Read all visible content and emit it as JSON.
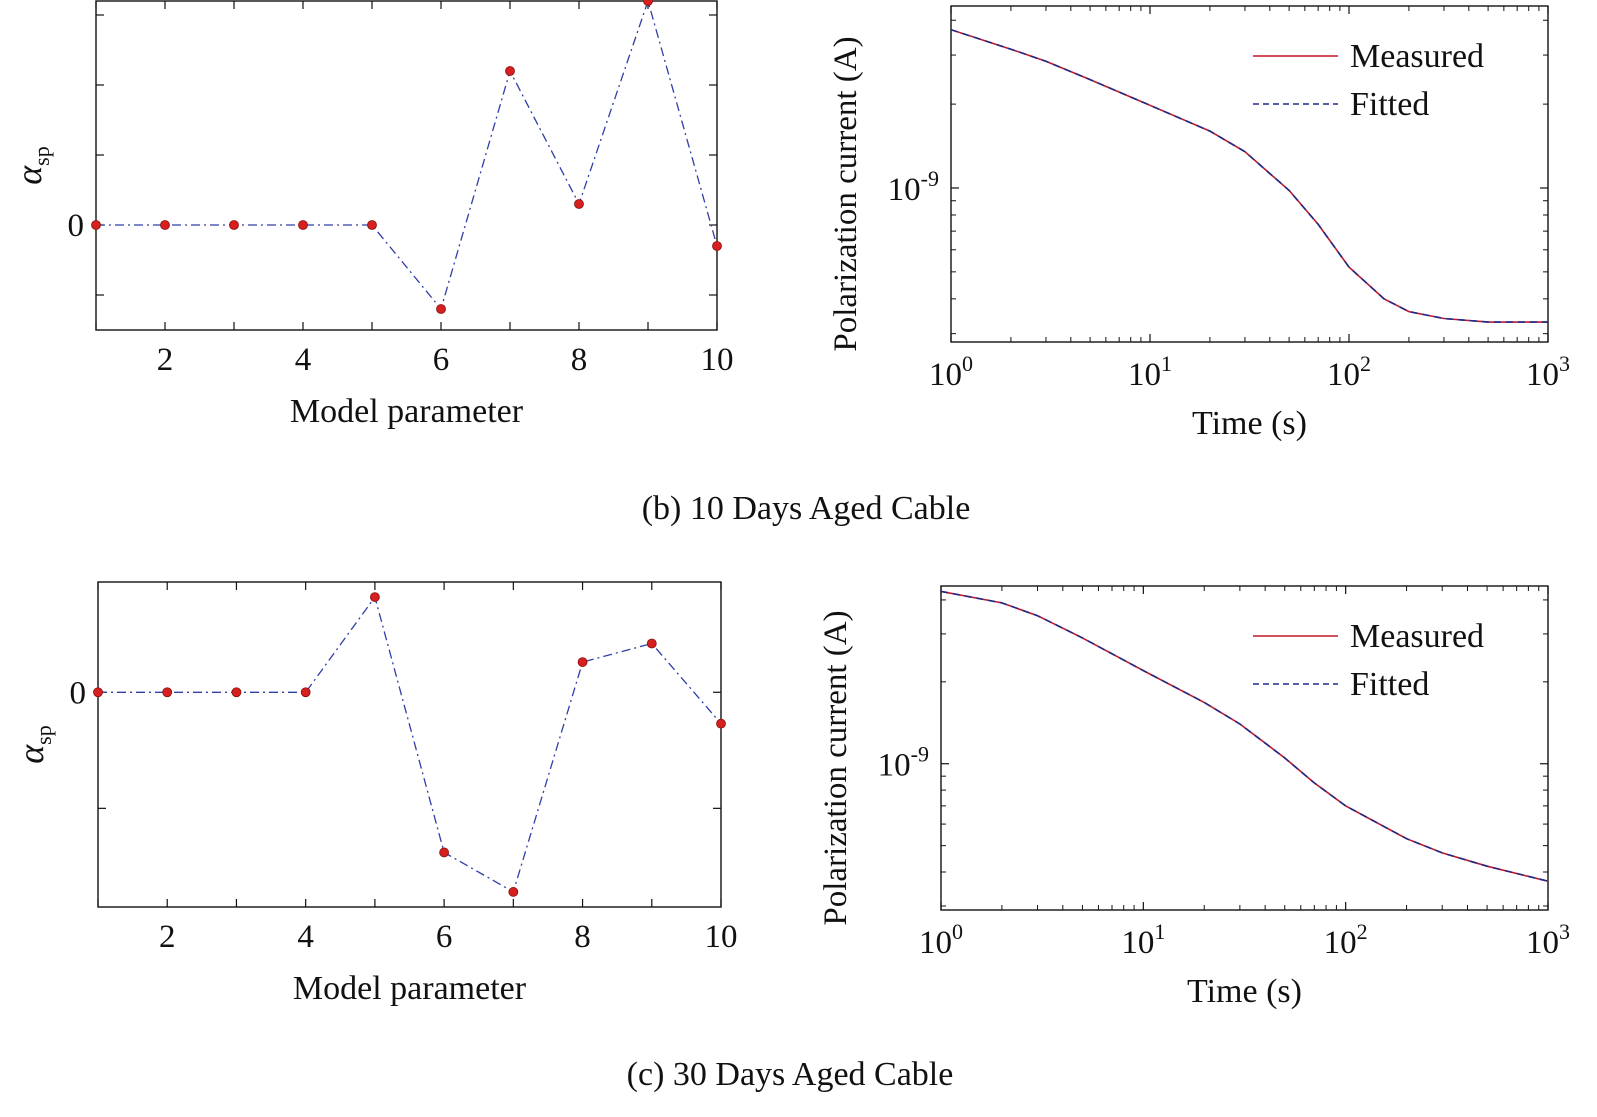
{
  "figure": {
    "captions": [
      "(b) 10 Days Aged Cable",
      "(c) 30 Days Aged Cable"
    ]
  },
  "colors": {
    "marker": "#d61f1f",
    "dashdot": "#2f3fa6",
    "measured": "#c0182a",
    "fitted": "#1e2a8a",
    "axis": "#111111"
  },
  "chart_data": [
    {
      "id": "b-alpha",
      "panel": "(b)",
      "type": "line",
      "xlabel": "Model parameter",
      "ylabel": "α",
      "ylabel_sub": "sp",
      "xlim": [
        1,
        10
      ],
      "ylim": [
        -1.5,
        3.2
      ],
      "xticks": [
        1,
        2,
        3,
        4,
        5,
        6,
        7,
        8,
        9,
        10
      ],
      "xtick_labels": [
        "",
        "2",
        "",
        "4",
        "",
        "6",
        "",
        "8",
        "",
        "10"
      ],
      "yticks": [
        -1,
        0,
        1,
        2,
        3
      ],
      "ytick_labels": [
        "",
        "0",
        "",
        "",
        ""
      ],
      "series": [
        {
          "name": "alpha_sp",
          "x": [
            1,
            2,
            3,
            4,
            5,
            6,
            7,
            8,
            9,
            10
          ],
          "y": [
            0,
            0,
            0,
            0,
            0,
            -1.2,
            2.2,
            0.3,
            3.2,
            -0.3
          ]
        }
      ]
    },
    {
      "id": "b-current",
      "panel": "(b)",
      "type": "line",
      "xscale": "log",
      "yscale": "log",
      "xlabel": "Time (s)",
      "ylabel": "Polarization current (A)",
      "xlim": [
        1,
        1000
      ],
      "ylim": [
        2.8e-10,
        4.5e-09
      ],
      "xticks": [
        1,
        10,
        100,
        1000
      ],
      "xtick_labels": [
        {
          "base": "10",
          "exp": "0"
        },
        {
          "base": "10",
          "exp": "1"
        },
        {
          "base": "10",
          "exp": "2"
        },
        {
          "base": "10",
          "exp": "3"
        }
      ],
      "yticks": [
        1e-09
      ],
      "ytick_labels": [
        {
          "base": "10",
          "exp": "-9"
        }
      ],
      "legend": {
        "position": "top-right",
        "entries": [
          "Measured",
          "Fitted"
        ]
      },
      "series": [
        {
          "name": "Measured",
          "style": "solid",
          "x": [
            1,
            2,
            3,
            5,
            10,
            20,
            30,
            50,
            70,
            100,
            150,
            200,
            300,
            500,
            1000
          ],
          "y": [
            3.7e-09,
            3.15e-09,
            2.85e-09,
            2.45e-09,
            1.98e-09,
            1.6e-09,
            1.35e-09,
            9.8e-10,
            7.4e-10,
            5.2e-10,
            4e-10,
            3.6e-10,
            3.4e-10,
            3.3e-10,
            3.3e-10
          ]
        },
        {
          "name": "Fitted",
          "style": "dashed",
          "x": [
            1,
            2,
            3,
            5,
            10,
            20,
            30,
            50,
            70,
            100,
            150,
            200,
            300,
            500,
            1000
          ],
          "y": [
            3.7e-09,
            3.15e-09,
            2.85e-09,
            2.45e-09,
            1.98e-09,
            1.6e-09,
            1.35e-09,
            9.8e-10,
            7.4e-10,
            5.2e-10,
            4e-10,
            3.6e-10,
            3.4e-10,
            3.3e-10,
            3.3e-10
          ]
        }
      ]
    },
    {
      "id": "c-alpha",
      "panel": "(c)",
      "type": "line",
      "xlabel": "Model parameter",
      "ylabel": "α",
      "ylabel_sub": "sp",
      "xlim": [
        1,
        10
      ],
      "ylim": [
        -1.85,
        0.95
      ],
      "xticks": [
        1,
        2,
        3,
        4,
        5,
        6,
        7,
        8,
        9,
        10
      ],
      "xtick_labels": [
        "",
        "2",
        "",
        "4",
        "",
        "6",
        "",
        "8",
        "",
        "10"
      ],
      "yticks": [
        -1,
        0
      ],
      "ytick_labels": [
        "",
        "0"
      ],
      "series": [
        {
          "name": "alpha_sp",
          "x": [
            1,
            2,
            3,
            4,
            5,
            6,
            7,
            8,
            9,
            10
          ],
          "y": [
            0,
            0,
            0,
            0,
            0.82,
            -1.38,
            -1.72,
            0.26,
            0.42,
            -0.27
          ]
        }
      ]
    },
    {
      "id": "c-current",
      "panel": "(c)",
      "type": "line",
      "xscale": "log",
      "yscale": "log",
      "xlabel": "Time (s)",
      "ylabel": "Polarization current (A)",
      "xlim": [
        1,
        1000
      ],
      "ylim": [
        2.9e-10,
        4.5e-09
      ],
      "xticks": [
        1,
        10,
        100,
        1000
      ],
      "xtick_labels": [
        {
          "base": "10",
          "exp": "0"
        },
        {
          "base": "10",
          "exp": "1"
        },
        {
          "base": "10",
          "exp": "2"
        },
        {
          "base": "10",
          "exp": "3"
        }
      ],
      "yticks": [
        1e-09
      ],
      "ytick_labels": [
        {
          "base": "10",
          "exp": "-9"
        }
      ],
      "legend": {
        "position": "top-right",
        "entries": [
          "Measured",
          "Fitted"
        ]
      },
      "series": [
        {
          "name": "Measured",
          "style": "solid",
          "x": [
            1,
            2,
            3,
            5,
            10,
            20,
            30,
            50,
            70,
            100,
            200,
            300,
            500,
            1000
          ],
          "y": [
            4.3e-09,
            3.9e-09,
            3.5e-09,
            2.9e-09,
            2.2e-09,
            1.68e-09,
            1.4e-09,
            1.05e-09,
            8.5e-10,
            7e-10,
            5.3e-10,
            4.7e-10,
            4.2e-10,
            3.7e-10
          ]
        },
        {
          "name": "Fitted",
          "style": "dashed",
          "x": [
            1,
            2,
            3,
            5,
            10,
            20,
            30,
            50,
            70,
            100,
            200,
            300,
            500,
            1000
          ],
          "y": [
            4.3e-09,
            3.9e-09,
            3.5e-09,
            2.9e-09,
            2.2e-09,
            1.68e-09,
            1.4e-09,
            1.05e-09,
            8.5e-10,
            7e-10,
            5.3e-10,
            4.7e-10,
            4.2e-10,
            3.7e-10
          ]
        }
      ]
    }
  ]
}
